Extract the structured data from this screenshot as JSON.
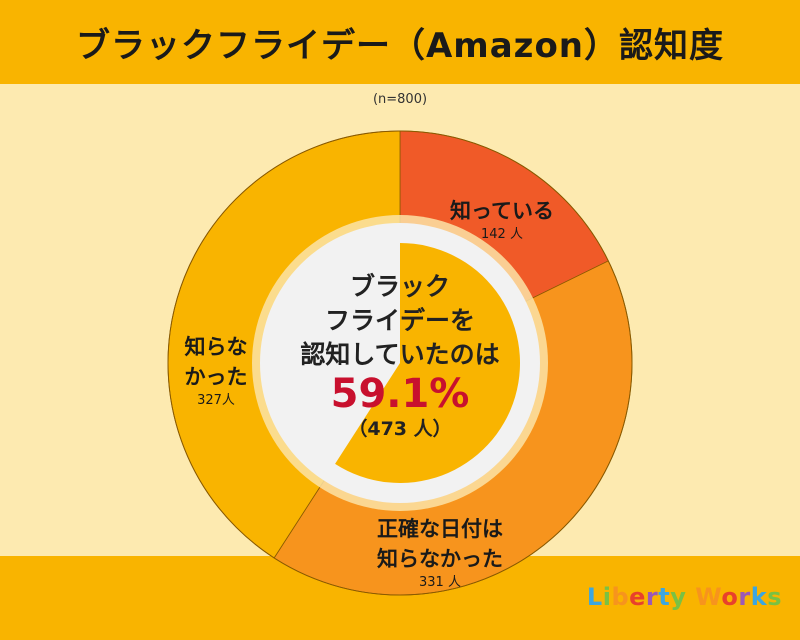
{
  "title": "ブラックフライデー（Amazon）認知度",
  "subtitle": "(n=800)",
  "chart_data": {
    "type": "pie",
    "title": "ブラックフライデー（Amazon）認知度",
    "n": "(n=800)",
    "slices": [
      {
        "label": "知っている",
        "value": 142,
        "count_label": "142 人",
        "color": "#F05A28"
      },
      {
        "label": "正確な日付は知らなかった",
        "value": 331,
        "count_label": "331 人",
        "color": "#F7941D"
      },
      {
        "label": "知らなかった",
        "value": 327,
        "count_label": "327人",
        "color": "#F9B400"
      }
    ],
    "center": {
      "lines": [
        "ブラック",
        "フライデーを",
        "認知していたのは"
      ],
      "percent": "59.1%",
      "count": "（473 人）",
      "fill_fraction": 0.591,
      "fill_color": "#F9B400",
      "bg_color": "#F2F2F2"
    }
  },
  "labels": {
    "know": [
      "知っている"
    ],
    "know_count": "142 人",
    "date": [
      "正確な日付は",
      "知らなかった"
    ],
    "date_count": "331 人",
    "not": [
      "知らな",
      "かった"
    ],
    "not_count": "327人"
  },
  "logo": {
    "text": "Liberty Works",
    "colors": [
      "#3CA6E0",
      "#7AC143",
      "#F7941D",
      "#E8412C",
      "#9B59B6",
      "#3CA6E0",
      "#7AC143",
      "#F7941D",
      "#E8412C",
      "#9B59B6",
      "#3CA6E0",
      "#7AC143",
      "#F7941D"
    ]
  }
}
